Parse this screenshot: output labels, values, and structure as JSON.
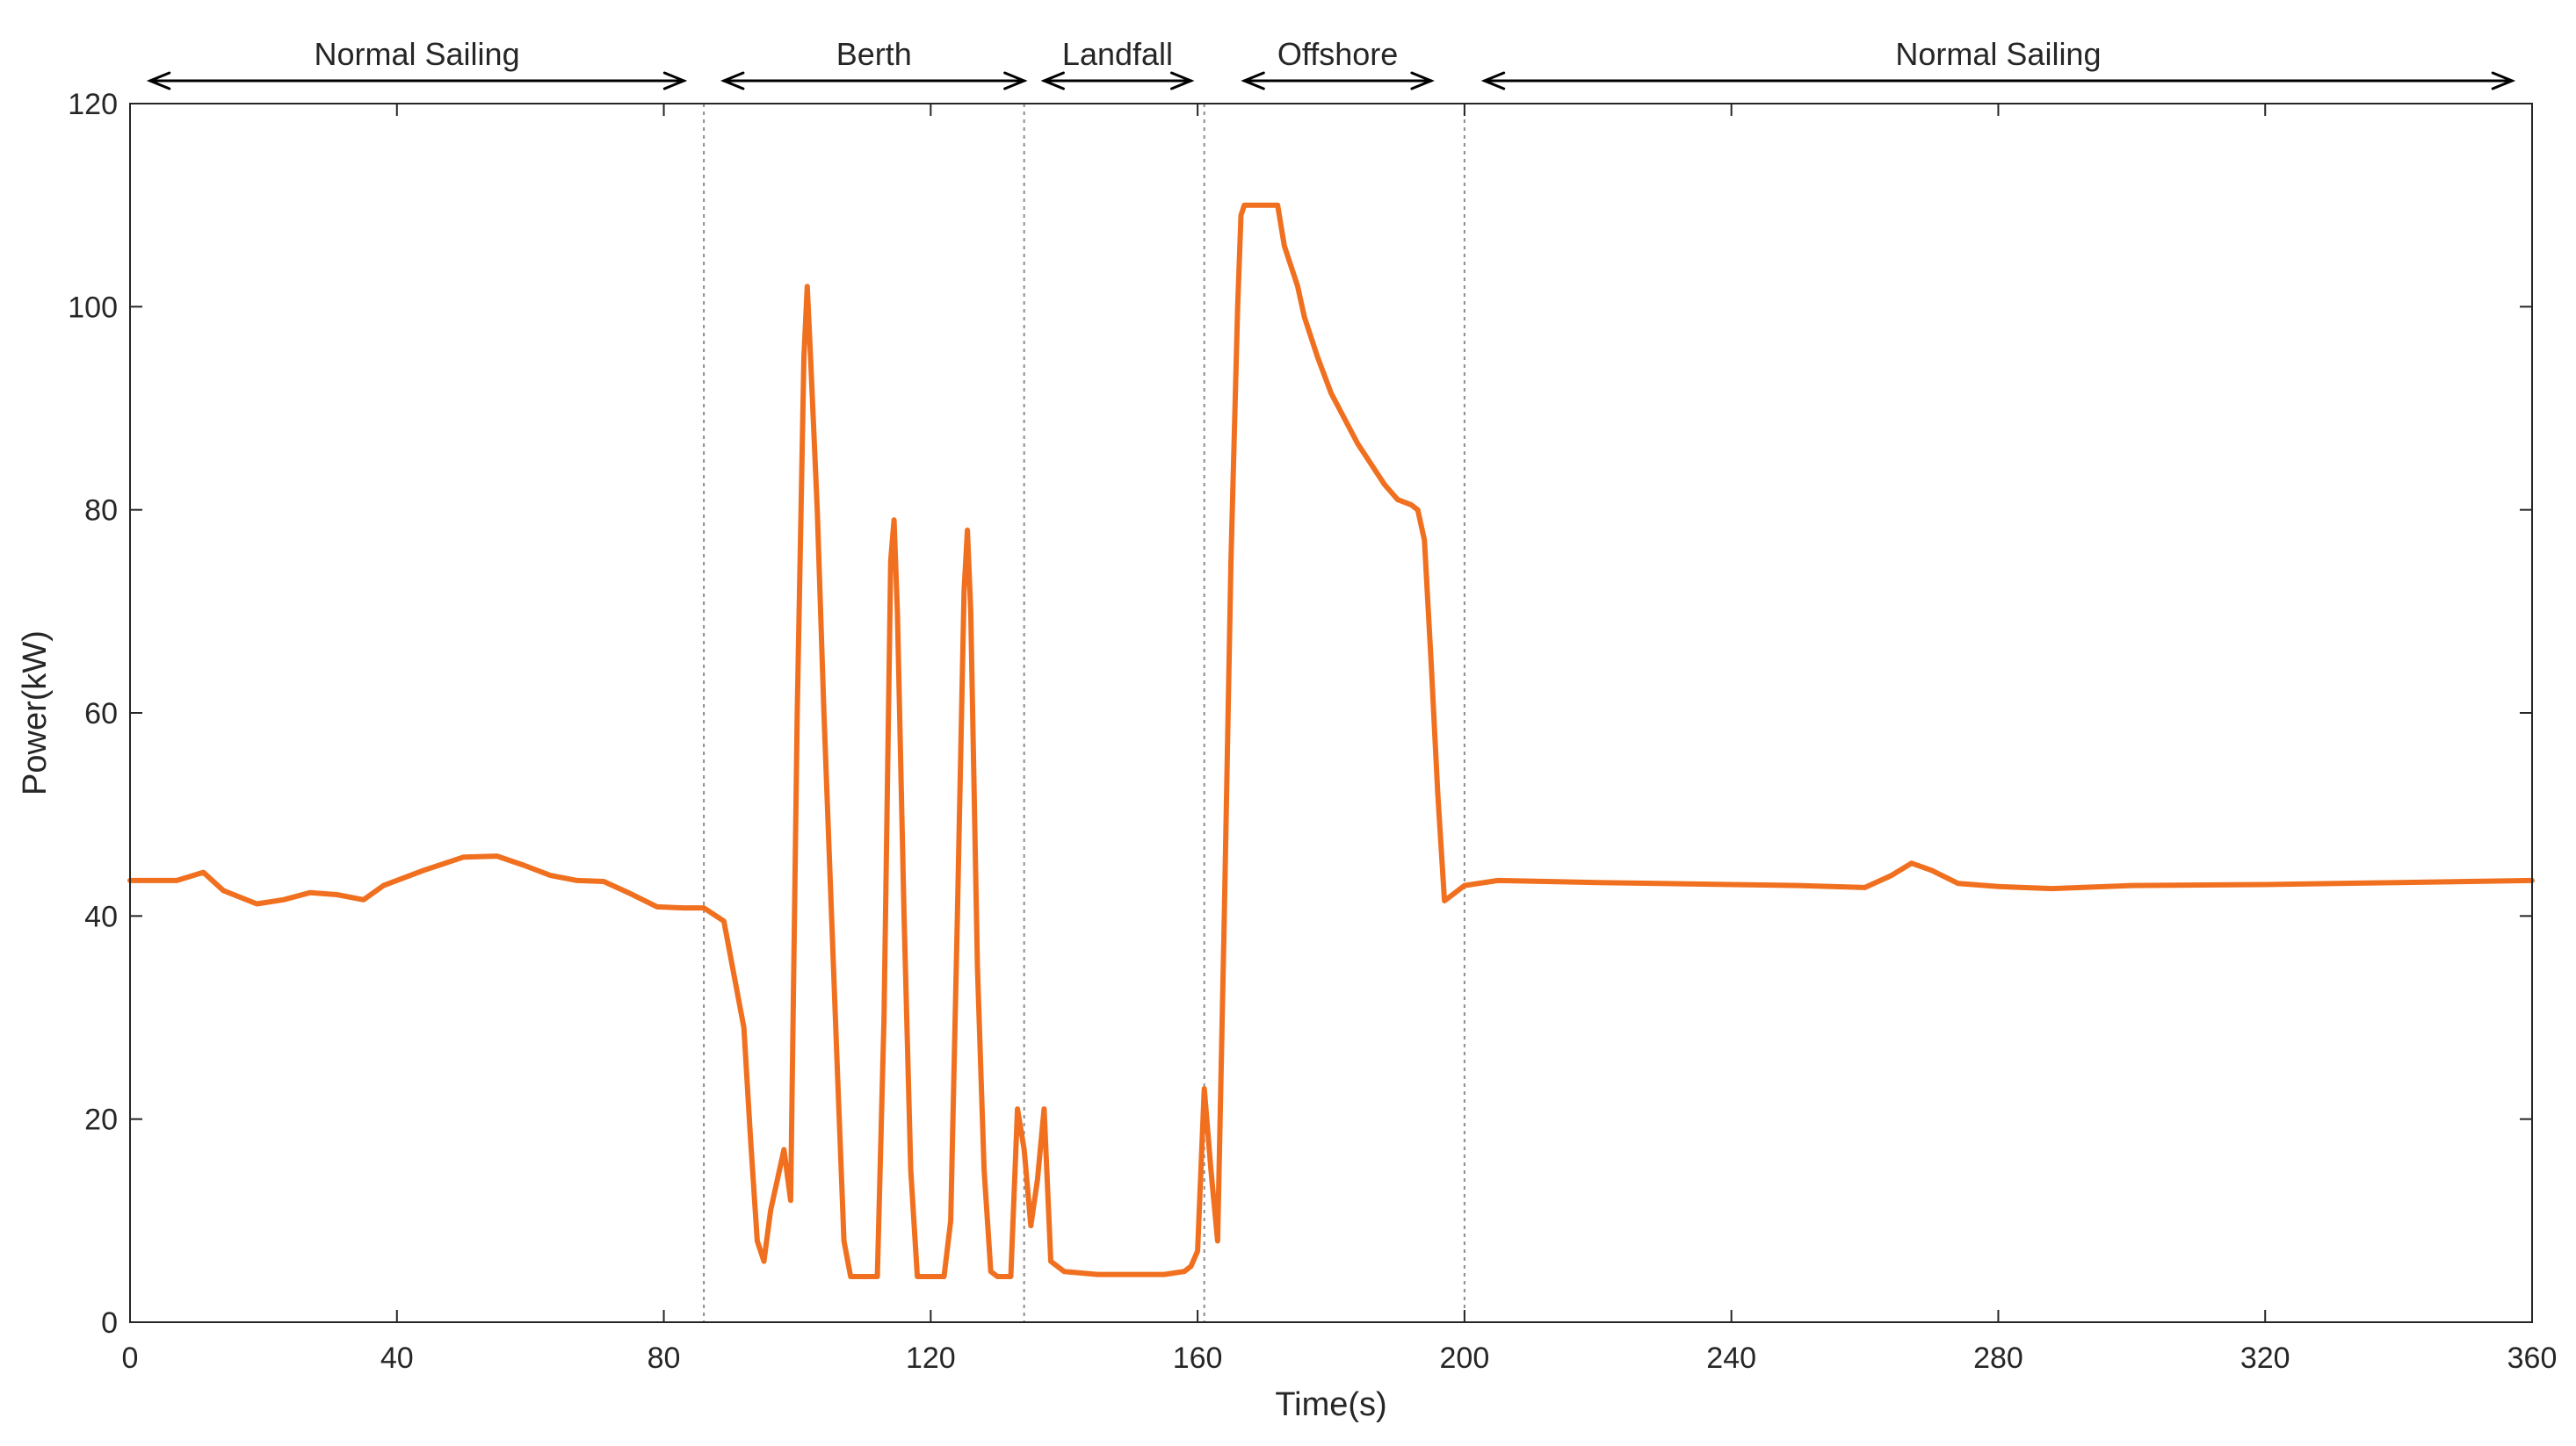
{
  "colors": {
    "series": "#f07020",
    "axis": "#262626",
    "divider": "#8c8c8c",
    "background": "#ffffff"
  },
  "chart_data": {
    "type": "line",
    "title": "",
    "xlabel": "Time(s)",
    "ylabel": "Power(kW)",
    "xlim": [
      0,
      360
    ],
    "ylim": [
      0,
      120
    ],
    "xticks": [
      0,
      40,
      80,
      120,
      160,
      200,
      240,
      280,
      320,
      360
    ],
    "yticks": [
      0,
      20,
      40,
      60,
      80,
      100,
      120
    ],
    "grid": false,
    "legend": "none",
    "phases": [
      {
        "label": "Normal Sailing",
        "start": 3,
        "end": 83
      },
      {
        "label": "Berth",
        "start": 89,
        "end": 134
      },
      {
        "label": "Landfall",
        "start": 137,
        "end": 159
      },
      {
        "label": "Offshore",
        "start": 167,
        "end": 195
      },
      {
        "label": "Normal Sailing",
        "start": 203,
        "end": 357
      }
    ],
    "dividers": [
      86,
      134,
      161,
      200
    ],
    "series": [
      {
        "color": "#f07020",
        "x": [
          0,
          4,
          7,
          11,
          14,
          19,
          23,
          27,
          31,
          35,
          38,
          44,
          50,
          55,
          59,
          63,
          67,
          71,
          75,
          79,
          83,
          86,
          89,
          92,
          93,
          94,
          95,
          96,
          98,
          99,
          100,
          101,
          101.5,
          102,
          103,
          104,
          106,
          107,
          108,
          109,
          110,
          111,
          112,
          113,
          114,
          114.5,
          115,
          116,
          117,
          118,
          119,
          120,
          121,
          122,
          123,
          124,
          125,
          125.5,
          126,
          127,
          128,
          129,
          130,
          131,
          132,
          133,
          134,
          135,
          136,
          137,
          138,
          140,
          145,
          150,
          155,
          158,
          159,
          160,
          161,
          162,
          163,
          164,
          165,
          166,
          166.5,
          167,
          168,
          170,
          172,
          173,
          175,
          176,
          178,
          180,
          182,
          184,
          186,
          188,
          190,
          192,
          193,
          194,
          195,
          196,
          197,
          198,
          200,
          205,
          220,
          240,
          250,
          260,
          264,
          267,
          270,
          274,
          280,
          288,
          300,
          320,
          340,
          360
        ],
        "values": [
          43.5,
          43.5,
          43.5,
          44.3,
          42.5,
          41.2,
          41.6,
          42.3,
          42.1,
          41.6,
          43.0,
          44.5,
          45.8,
          45.9,
          45.0,
          44.0,
          43.5,
          43.4,
          42.2,
          40.9,
          40.8,
          40.8,
          39.5,
          29,
          18,
          8,
          6,
          11,
          17,
          12,
          60,
          95,
          102,
          95,
          80,
          60,
          25,
          8,
          4.5,
          4.5,
          4.5,
          4.5,
          4.5,
          30,
          75,
          79,
          70,
          40,
          15,
          4.5,
          4.5,
          4.5,
          4.5,
          4.5,
          10,
          40,
          72,
          78,
          70,
          35,
          15,
          5,
          4.5,
          4.5,
          4.5,
          21,
          17,
          9.5,
          14,
          21,
          6,
          5,
          4.7,
          4.7,
          4.7,
          5,
          5.5,
          7,
          23,
          15,
          8,
          40,
          75,
          100,
          109,
          110,
          110,
          110,
          110,
          106,
          102,
          99,
          95,
          91.5,
          89,
          86.5,
          84.5,
          82.5,
          81,
          80.5,
          80,
          77,
          65,
          52,
          41.5,
          42,
          43,
          43.5,
          43.3,
          43.1,
          43.0,
          42.8,
          44.0,
          45.2,
          44.5,
          43.2,
          42.9,
          42.7,
          43.0,
          43.1,
          43.3,
          43.5
        ]
      }
    ]
  }
}
